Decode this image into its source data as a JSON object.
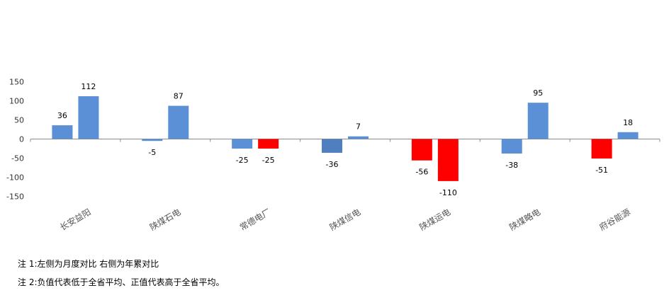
{
  "chart_data": {
    "type": "bar",
    "categories": [
      "长安益阳",
      "陕煤石电",
      "常德电厂",
      "陕煤信电",
      "陕煤运电",
      "陕煤略电",
      "府谷能源"
    ],
    "series": [
      {
        "values": [
          36,
          -5,
          -25,
          -36,
          -56,
          -38,
          -51
        ]
      },
      {
        "values": [
          112,
          87,
          -25,
          7,
          -110,
          95,
          18
        ]
      }
    ],
    "data_labels": [
      [
        "36",
        "-5",
        "-25",
        "-36",
        "-56",
        "-38",
        "-51"
      ],
      [
        "112",
        "87",
        "-25",
        "7",
        "-110",
        "95",
        "18"
      ]
    ],
    "bar_colors": [
      [
        "#5b8fd6",
        "#5b8fd6",
        "#5b8fd6",
        "#4f7fbf",
        "#ff0000",
        "#5b8fd6",
        "#ff0000"
      ],
      [
        "#5b8fd6",
        "#5b8fd6",
        "#ff0000",
        "#5b8fd6",
        "#ff0000",
        "#5b8fd6",
        "#5b8fd6"
      ]
    ],
    "yticks": [
      150,
      100,
      50,
      0,
      -50,
      -100,
      -150
    ],
    "ylim": [
      -150,
      150
    ],
    "grid": false,
    "legend": "none"
  },
  "notes": [
    "注 1:左侧为月度对比  右侧为年累对比",
    "注 2:负值代表低于全省平均、正值代表高于全省平均。"
  ]
}
